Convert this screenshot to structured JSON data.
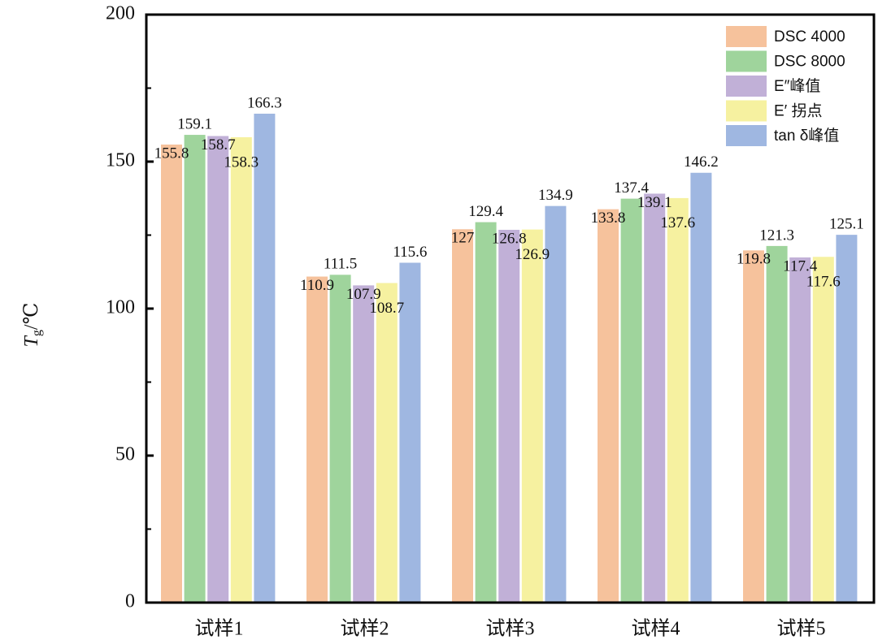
{
  "chart_data": {
    "type": "bar",
    "y_label": {
      "main": "T",
      "sub": "g",
      "unit": "/℃"
    },
    "categories": [
      "试样1",
      "试样2",
      "试样3",
      "试样4",
      "试样5"
    ],
    "series": [
      {
        "name": "DSC 4000",
        "color": "#f6c29c",
        "values": [
          155.8,
          110.9,
          127,
          133.8,
          119.8
        ]
      },
      {
        "name": "DSC 8000",
        "color": "#9fd49c",
        "values": [
          159.1,
          111.5,
          129.4,
          137.4,
          121.3
        ]
      },
      {
        "name": "E″峰值",
        "color": "#c1b0d7",
        "values": [
          158.7,
          107.9,
          126.8,
          139.1,
          117.4
        ]
      },
      {
        "name": "E′ 拐点",
        "color": "#f6f1a0",
        "values": [
          158.3,
          108.7,
          126.9,
          137.6,
          117.6
        ]
      },
      {
        "name": "tan δ峰值",
        "color": "#9fb7e1",
        "values": [
          166.3,
          115.6,
          134.9,
          146.2,
          125.1
        ]
      }
    ],
    "ylim": [
      0,
      200
    ],
    "yticks": [
      0,
      50,
      100,
      150,
      200
    ],
    "yminorticks": [
      25,
      75,
      125,
      175
    ],
    "legend": "upper right"
  }
}
